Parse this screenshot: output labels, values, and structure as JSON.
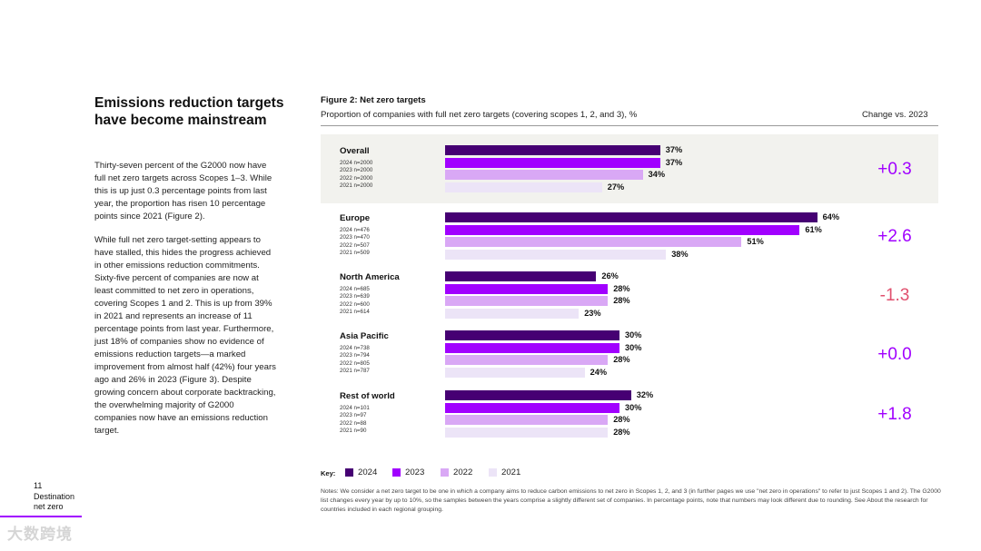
{
  "left": {
    "heading": "Emissions reduction targets have become mainstream",
    "paragraph1": "Thirty-seven percent of the G2000 now have full net zero targets across Scopes 1–3. While this is up just 0.3 percentage points from last year, the proportion has risen 10 percentage points since 2021 (Figure 2).",
    "paragraph2": "While full net zero target-setting appears to have stalled, this hides the progress achieved in other emissions reduction commitments. Sixty-five percent of companies are now at least committed to net zero in operations, covering Scopes 1 and 2. This is up from 39% in 2021 and represents an increase of 11 percentage points from last year. Furthermore, just 18% of companies show no evidence of emissions reduction targets—a marked improvement from almost half (42%) four years ago and 26% in 2023 (Figure 3). Despite growing concern about corporate backtracking, the overwhelming majority of G2000 companies now have an emissions reduction target."
  },
  "footer": {
    "page_number": "11",
    "section_line1": "Destination",
    "section_line2": "net zero",
    "watermark": "大数跨境"
  },
  "colors": {
    "2024": "#460073",
    "2023": "#a100ff",
    "2022": "#d9a8f5",
    "2021": "#ece4f7",
    "change_positive": "#a100ff",
    "change_negative": "#e0506e"
  },
  "chart_data": {
    "type": "bar",
    "orientation": "horizontal",
    "title": "Figure 2: Net zero targets",
    "subtitle": "Proportion of companies with full net zero targets (covering scopes 1, 2, and 3), %",
    "change_header": "Change vs. 2023",
    "unit": "%",
    "xlim": [
      0,
      100
    ],
    "years": [
      "2024",
      "2023",
      "2022",
      "2021"
    ],
    "groups": [
      {
        "name": "Overall",
        "n_labels": [
          "2024 n=2000",
          "2023 n=2000",
          "2022 n=2000",
          "2021 n=2000"
        ],
        "values": [
          37,
          37,
          34,
          27
        ],
        "change": "+0.3",
        "change_sign": "positive",
        "highlight": true
      },
      {
        "name": "Europe",
        "n_labels": [
          "2024 n=476",
          "2023 n=470",
          "2022 n=507",
          "2021 n=509"
        ],
        "values": [
          64,
          61,
          51,
          38
        ],
        "change": "+2.6",
        "change_sign": "positive",
        "highlight": false
      },
      {
        "name": "North America",
        "n_labels": [
          "2024 n=685",
          "2023 n=639",
          "2022 n=600",
          "2021 n=614"
        ],
        "values": [
          26,
          28,
          28,
          23
        ],
        "change": "-1.3",
        "change_sign": "negative",
        "highlight": false
      },
      {
        "name": "Asia Pacific",
        "n_labels": [
          "2024 n=738",
          "2023 n=794",
          "2022 n=805",
          "2021 n=787"
        ],
        "values": [
          30,
          30,
          28,
          24
        ],
        "change": "+0.0",
        "change_sign": "positive",
        "highlight": false
      },
      {
        "name": "Rest of world",
        "n_labels": [
          "2024 n=101",
          "2023 n=97",
          "2022 n=88",
          "2021 n=90"
        ],
        "values": [
          32,
          30,
          28,
          28
        ],
        "change": "+1.8",
        "change_sign": "positive",
        "highlight": false
      }
    ],
    "legend": {
      "title": "Key:",
      "items": [
        "2024",
        "2023",
        "2022",
        "2021"
      ]
    },
    "notes": "Notes: We consider a net zero target to be one in which a company aims to reduce carbon emissions to net zero in Scopes 1, 2, and 3 (in further pages we use \"net zero in operations\" to refer to just Scopes 1 and 2). The G2000 list changes every year by up to 10%, so the samples between the years comprise a slightly different set of companies. In percentage points, note that numbers may look different due to rounding. See About the research for countries included in each regional grouping."
  }
}
